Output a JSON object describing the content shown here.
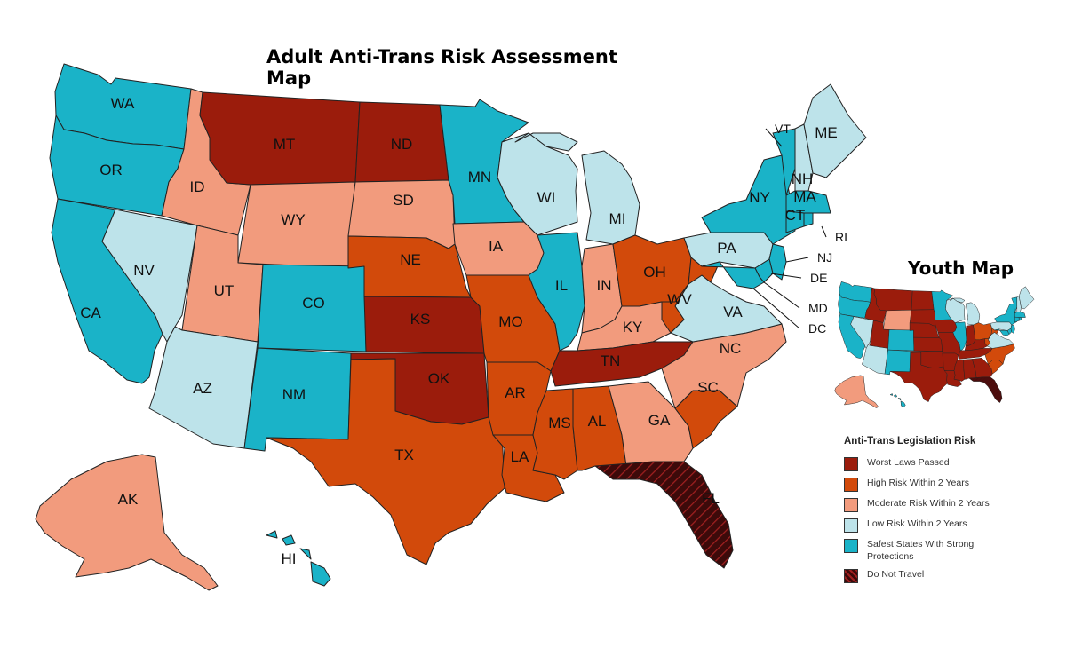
{
  "title": "Adult Anti-Trans Risk Assessment Map",
  "youth_title": "Youth Map",
  "legend": {
    "title": "Anti-Trans Legislation Risk",
    "items": [
      {
        "label": "Worst Laws Passed",
        "color": "#9b1c0c"
      },
      {
        "label": "High Risk Within 2 Years",
        "color": "#d24a0b"
      },
      {
        "label": "Moderate Risk Within 2 Years",
        "color": "#f29b7d"
      },
      {
        "label": "Low Risk Within 2 Years",
        "color": "#bde3ea"
      },
      {
        "label": "Safest States With Strong Protections",
        "color": "#1ab3c8"
      },
      {
        "label": "Do Not Travel",
        "color": "#3d0a0a"
      }
    ]
  },
  "states": {
    "WA": "safest",
    "OR": "safest",
    "CA": "safest",
    "NV": "low",
    "ID": "moderate",
    "MT": "worst",
    "WY": "moderate",
    "UT": "moderate",
    "AZ": "low",
    "CO": "safest",
    "NM": "safest",
    "ND": "worst",
    "SD": "moderate",
    "NE": "high",
    "KS": "worst",
    "OK": "worst",
    "TX": "high",
    "MN": "safest",
    "IA": "moderate",
    "MO": "high",
    "AR": "high",
    "LA": "high",
    "WI": "low",
    "IL": "safest",
    "MI": "low",
    "IN": "moderate",
    "OH": "high",
    "KY": "moderate",
    "TN": "worst",
    "MS": "high",
    "AL": "high",
    "GA": "moderate",
    "FL": "do_not_travel",
    "SC": "high",
    "NC": "moderate",
    "VA": "low",
    "WV": "high",
    "PA": "low",
    "NY": "safest",
    "VT": "safest",
    "NH": "low",
    "ME": "low",
    "MA": "safest",
    "CT": "safest",
    "RI": "safest",
    "NJ": "safest",
    "DE": "safest",
    "MD": "safest",
    "DC": "safest",
    "AK": "moderate",
    "HI": "safest"
  }
}
